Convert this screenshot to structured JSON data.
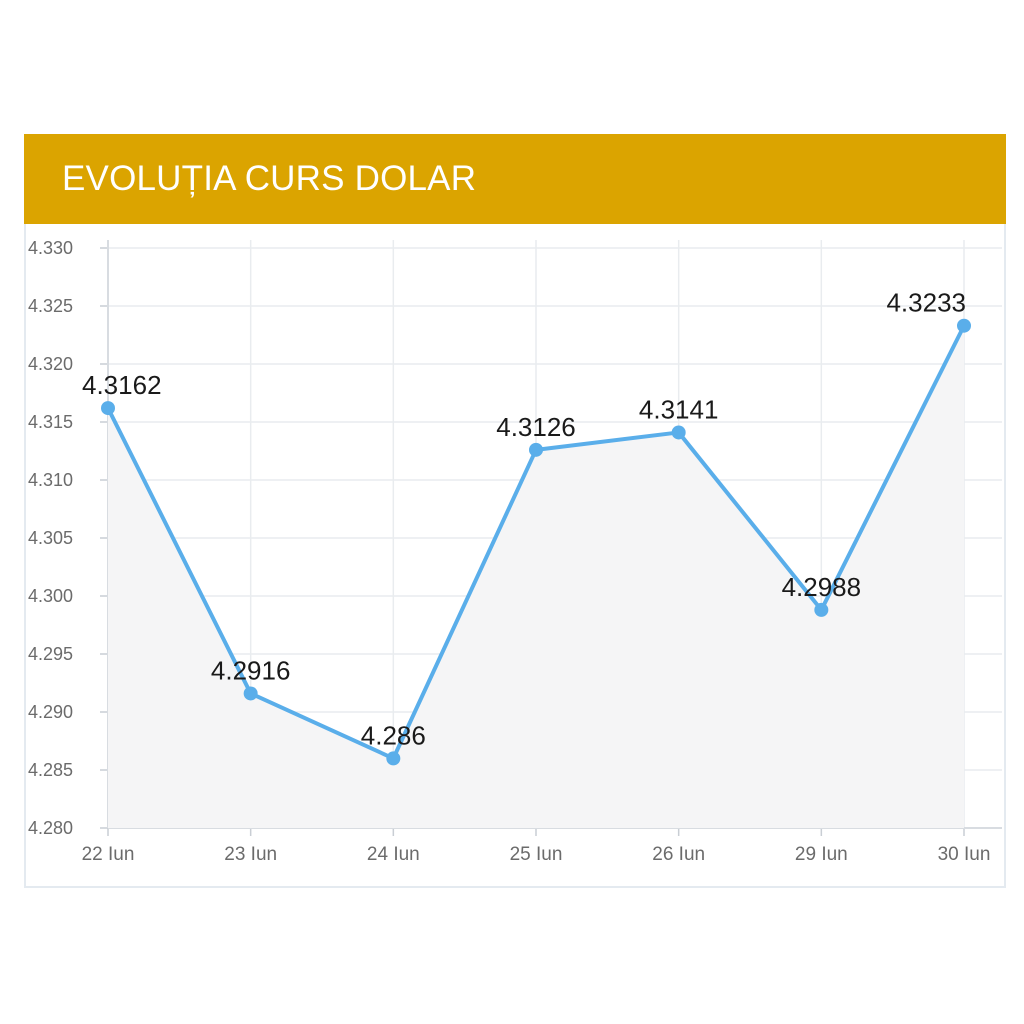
{
  "header": {
    "title": "EVOLUȚIA CURS DOLAR",
    "background_color": "#dba400"
  },
  "chart_data": {
    "type": "line",
    "title": "EVOLUȚIA CURS DOLAR",
    "xlabel": "",
    "ylabel": "",
    "categories": [
      "22 Iun",
      "23 Iun",
      "24 Iun",
      "25 Iun",
      "26 Iun",
      "29 Iun",
      "30 Iun"
    ],
    "series": [
      {
        "values": [
          4.3162,
          4.2916,
          4.286,
          4.3126,
          4.3141,
          4.2988,
          4.3233
        ],
        "data_labels": [
          "4.3162",
          "4.2916",
          "4.286",
          "4.3126",
          "4.3141",
          "4.2988",
          "4.3233"
        ],
        "color": "#5aaeea"
      }
    ],
    "ylim": [
      4.28,
      4.33
    ],
    "yticks": [
      "4.330",
      "4.325",
      "4.320",
      "4.315",
      "4.310",
      "4.305",
      "4.300",
      "4.295",
      "4.290",
      "4.285",
      "4.280"
    ],
    "grid": true,
    "area_fill": "#f5f5f6"
  }
}
